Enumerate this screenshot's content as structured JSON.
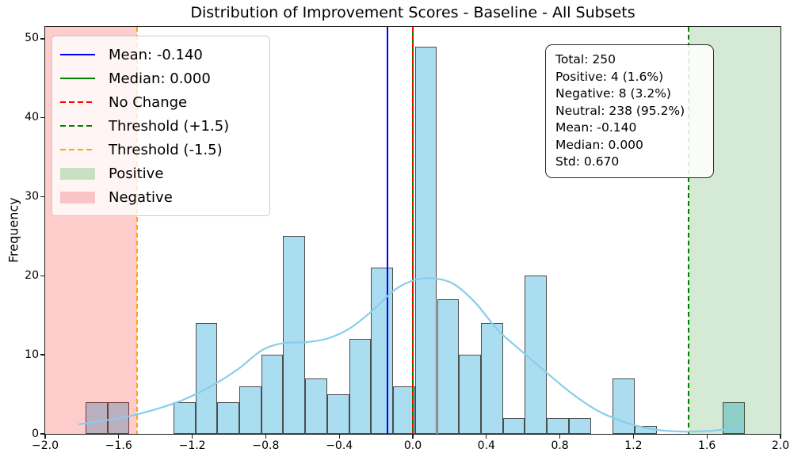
{
  "title": "Distribution of Improvement Scores - Baseline - All Subsets",
  "ylabel": "Frequency",
  "chart_data": {
    "type": "bar",
    "subtype": "histogram-with-kde",
    "title": "Distribution of Improvement Scores - Baseline - All Subsets",
    "xlabel": "",
    "ylabel": "Frequency",
    "xlim": [
      -2.0,
      2.0
    ],
    "ylim": [
      0,
      51.5
    ],
    "grid": false,
    "x_ticks": {
      "values": [
        -2.0,
        -1.6,
        -1.2,
        -0.8,
        -0.4,
        0.0,
        0.4,
        0.8,
        1.2,
        1.6,
        2.0
      ],
      "labels": [
        "−2.0",
        "−1.6",
        "−1.2",
        "−0.8",
        "−0.4",
        "0.0",
        "0.4",
        "0.8",
        "1.2",
        "1.6",
        "2.0"
      ]
    },
    "y_ticks": {
      "values": [
        0,
        10,
        20,
        30,
        40,
        50
      ],
      "labels": [
        "0",
        "10",
        "20",
        "30",
        "40",
        "50"
      ]
    },
    "histogram": {
      "bin_start": -1.78,
      "bin_width": 0.11947,
      "counts": [
        4,
        4,
        0,
        0,
        4,
        14,
        4,
        6,
        10,
        25,
        7,
        5,
        12,
        21,
        6,
        49,
        17,
        10,
        14,
        2,
        20,
        2,
        2,
        0,
        7,
        1,
        0,
        0,
        0,
        4
      ],
      "bar_fill": "#abddf1",
      "bar_edge": "#4c4c4c"
    },
    "kde": {
      "color": "#87ceeb",
      "x": [
        -1.82,
        -1.7,
        -1.55,
        -1.4,
        -1.25,
        -1.1,
        -0.95,
        -0.82,
        -0.7,
        -0.58,
        -0.46,
        -0.34,
        -0.22,
        -0.1,
        0.0,
        0.1,
        0.22,
        0.34,
        0.46,
        0.58,
        0.72,
        0.86,
        1.0,
        1.15,
        1.3,
        1.45,
        1.6,
        1.72,
        1.8
      ],
      "y": [
        1.2,
        1.6,
        2.2,
        3.1,
        4.3,
        6.0,
        8.2,
        10.6,
        11.5,
        11.6,
        12.1,
        13.4,
        15.6,
        18.2,
        19.4,
        19.7,
        19.0,
        16.6,
        13.2,
        10.7,
        7.9,
        5.2,
        3.0,
        1.5,
        0.6,
        0.3,
        0.35,
        0.6,
        0.7
      ]
    },
    "vlines": [
      {
        "name": "median-line",
        "x": 0.0,
        "color": "#008000",
        "style": "solid",
        "label": "Median: 0.000"
      },
      {
        "name": "mean-line",
        "x": -0.14,
        "color": "#0000ff",
        "style": "solid",
        "label": "Mean: -0.140"
      },
      {
        "name": "no-change-line",
        "x": 0.0,
        "color": "#ff0000",
        "style": "dashed",
        "label": "No Change"
      },
      {
        "name": "threshold-positive-line",
        "x": 1.5,
        "color": "#008000",
        "style": "dashed",
        "label": "Threshold (+1.5)"
      },
      {
        "name": "threshold-negative-line",
        "x": -1.5,
        "color": "#ffa500",
        "style": "dashed",
        "label": "Threshold (-1.5)"
      }
    ],
    "spans": [
      {
        "name": "negative-region",
        "from": -2.0,
        "to": -1.5,
        "color": "#ff0000",
        "alpha": 0.2,
        "label": "Negative"
      },
      {
        "name": "positive-region",
        "from": 1.5,
        "to": 2.0,
        "color": "#008000",
        "alpha": 0.17,
        "label": "Positive"
      }
    ]
  },
  "legend": {
    "items": [
      {
        "swatch": "line",
        "color": "#0000ff",
        "label": "Mean: -0.140"
      },
      {
        "swatch": "dashed-line",
        "color": "#008000",
        "label": "Median: 0.000",
        "swatch_override": "line"
      },
      {
        "swatch": "dashed-line",
        "color": "#ff0000",
        "label": "No Change"
      },
      {
        "swatch": "dashed-line",
        "color": "#008000",
        "label": "Threshold (+1.5)"
      },
      {
        "swatch": "dashed-line",
        "color": "#ffa500",
        "label": "Threshold (-1.5)"
      },
      {
        "swatch": "patch",
        "color": "#c9dfc2",
        "label": "Positive"
      },
      {
        "swatch": "patch",
        "color": "#f9c4c7",
        "label": "Negative"
      }
    ]
  },
  "stats_box": {
    "lines": [
      "Total: 250",
      "Positive: 4 (1.6%)",
      "Negative: 8 (3.2%)",
      "Neutral: 238 (95.2%)",
      "Mean: -0.140",
      "Median: 0.000",
      "Std: 0.670"
    ]
  }
}
